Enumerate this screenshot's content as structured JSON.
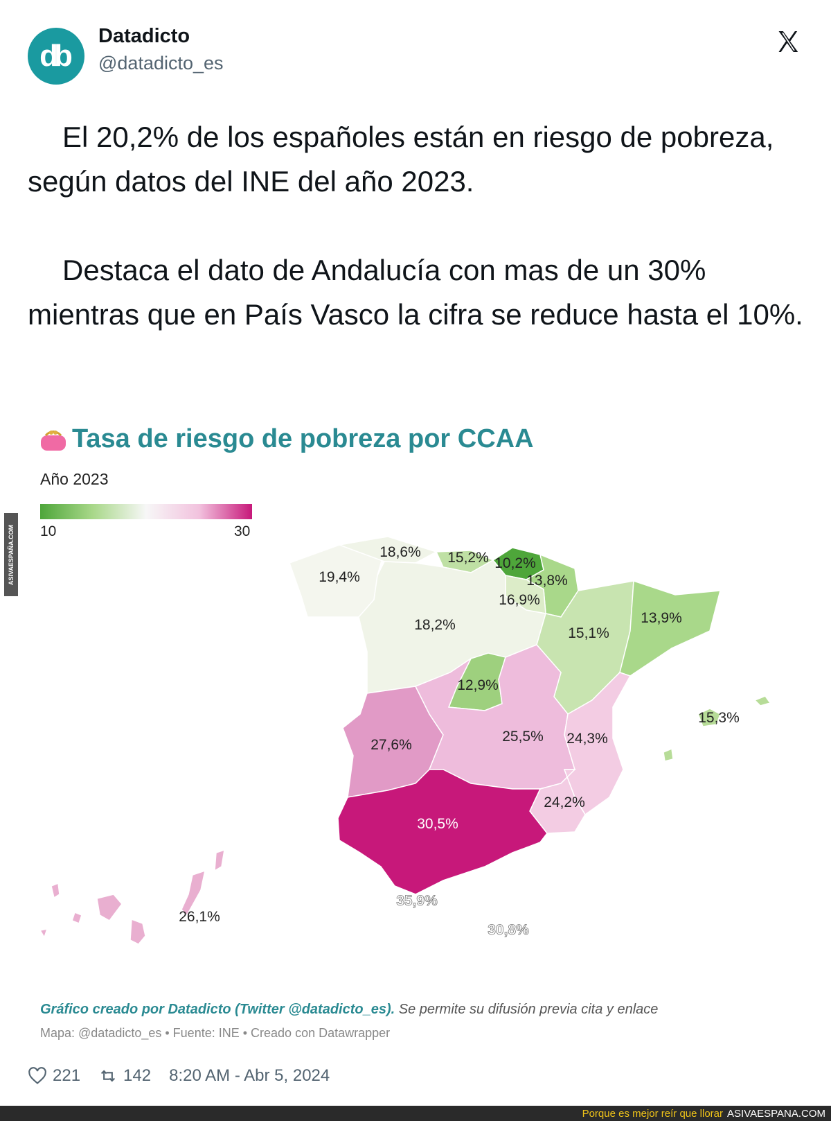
{
  "author": {
    "display_name": "Datadicto",
    "handle": "@datadicto_es",
    "avatar_text": "db"
  },
  "tweet": {
    "paragraph1": "El 20,2% de los españoles están en riesgo de pobreza, según datos del INE del año 2023.",
    "paragraph2": "Destaca el dato de Andalucía con mas de un 30% mientras que en País Vasco la cifra se reduce hasta el 10%."
  },
  "chart": {
    "title": "Tasa de riesgo de pobreza por CCAA",
    "subtitle": "Año 2023",
    "legend_min": "10",
    "legend_max": "30",
    "credit_bold": "Gráfico creado por Datadicto (Twitter @datadicto_es).",
    "credit_rest": " Se permite su difusión previa cita y enlace",
    "meta": "Mapa: @datadicto_es • Fuente: INE • Creado con Datawrapper"
  },
  "chart_data": {
    "type": "choropleth",
    "title": "Tasa de riesgo de pobreza por CCAA",
    "subtitle": "Año 2023",
    "color_scale": {
      "min": 10,
      "max": 30,
      "colors": [
        "#4ea63a",
        "#f7f7f7",
        "#c7187a"
      ]
    },
    "regions": [
      {
        "label": "19,4%",
        "value": 19.4
      },
      {
        "label": "18,6%",
        "value": 18.6
      },
      {
        "label": "15,2%",
        "value": 15.2
      },
      {
        "label": "10,2%",
        "value": 10.2
      },
      {
        "label": "13,8%",
        "value": 13.8
      },
      {
        "label": "16,9%",
        "value": 16.9
      },
      {
        "label": "18,2%",
        "value": 18.2
      },
      {
        "label": "15,1%",
        "value": 15.1
      },
      {
        "label": "13,9%",
        "value": 13.9
      },
      {
        "label": "12,9%",
        "value": 12.9
      },
      {
        "label": "15,3%",
        "value": 15.3
      },
      {
        "label": "27,6%",
        "value": 27.6
      },
      {
        "label": "25,5%",
        "value": 25.5
      },
      {
        "label": "24,3%",
        "value": 24.3
      },
      {
        "label": "24,2%",
        "value": 24.2
      },
      {
        "label": "30,5%",
        "value": 30.5
      },
      {
        "label": "35,9%",
        "value": 35.9
      },
      {
        "label": "30,8%",
        "value": 30.8
      },
      {
        "label": "26,1%",
        "value": 26.1
      }
    ]
  },
  "metrics": {
    "likes": "221",
    "retweets": "142",
    "timestamp": "8:20 AM - Abr 5, 2024"
  },
  "watermark": {
    "side": "ASIVAESPAÑA.COM",
    "banner_tagline": "Porque es mejor reír que llorar",
    "banner_site": "ASIVAESPANA.COM"
  },
  "icons": [
    "x-logo-icon",
    "purse-icon",
    "heart-icon",
    "retweet-icon"
  ]
}
